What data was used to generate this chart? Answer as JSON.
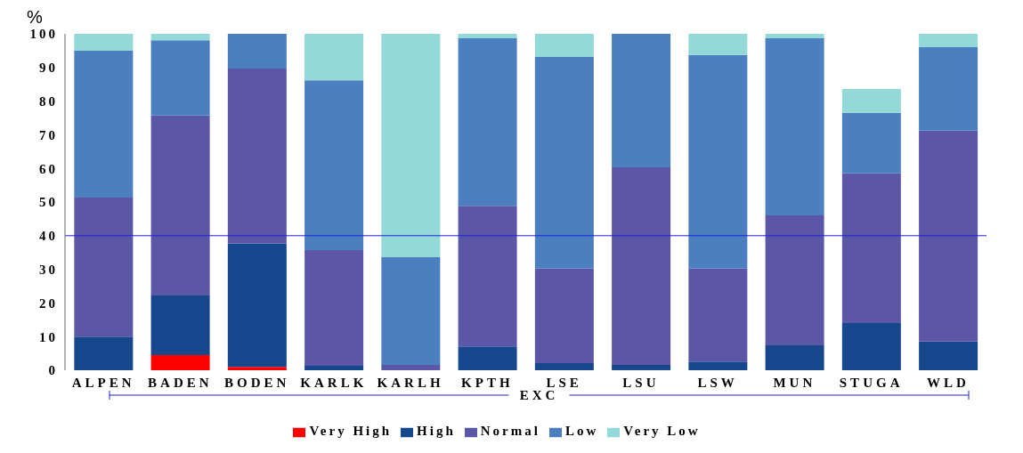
{
  "chart_data": {
    "type": "bar",
    "stacked": true,
    "xlabel": "EXC",
    "ylabel": "%",
    "categories": [
      "ALPEN",
      "BADEN",
      "BODEN",
      "KARLK",
      "KARLH",
      "KPTH",
      "LSE",
      "LSU",
      "LSW",
      "MUN",
      "STUGA",
      "WLD"
    ],
    "series": [
      {
        "name": "Very High",
        "color": "#ff0000",
        "values": [
          0,
          4.5,
          1,
          0,
          0,
          0,
          0,
          0,
          0,
          0,
          0,
          0
        ]
      },
      {
        "name": "High",
        "color": "#16468c",
        "values": [
          10,
          17.7,
          36.6,
          1.3,
          0,
          7.1,
          2.1,
          1.6,
          2.6,
          7.4,
          14,
          8.5
        ]
      },
      {
        "name": "Normal",
        "color": "#5b57a6",
        "values": [
          41.3,
          53.5,
          52.1,
          34.4,
          1.6,
          41.8,
          28.1,
          58.7,
          27.6,
          38.6,
          44.5,
          62.7
        ]
      },
      {
        "name": "Low",
        "color": "#4b7fc0",
        "values": [
          43.7,
          22.4,
          10.3,
          50.5,
          32,
          49.8,
          62.9,
          39.7,
          63.5,
          52.7,
          18,
          24.8
        ]
      },
      {
        "name": "Very Low",
        "color": "#93d9d7",
        "values": [
          5,
          1.9,
          0,
          13.8,
          66.4,
          1.3,
          6.9,
          0,
          6.3,
          1.3,
          7.1,
          4
        ]
      }
    ],
    "ylim": [
      0,
      100
    ],
    "yticks": [
      0,
      10,
      20,
      30,
      40,
      50,
      60,
      70,
      80,
      90,
      100
    ],
    "grid": false,
    "legend": "bottom",
    "ref_lines": [
      {
        "axis": "y",
        "value": 40,
        "color": "#2020e0"
      }
    ]
  }
}
